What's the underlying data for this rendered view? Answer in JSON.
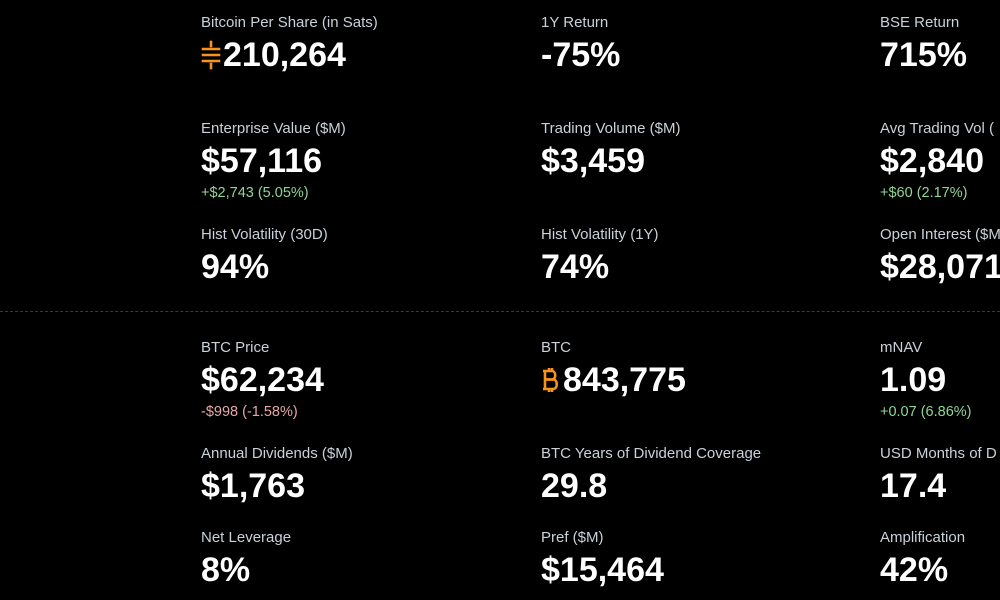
{
  "colors": {
    "accent": "#f7931a",
    "positive": "#8fd694",
    "negative": "#e6a8a8"
  },
  "top": {
    "bps": {
      "label": "Bitcoin Per Share (in Sats)",
      "value": "210,264",
      "icon": "sats-icon"
    },
    "return_1y": {
      "label": "1Y Return",
      "value": "-75%"
    },
    "bse_return": {
      "label": "BSE Return",
      "value": "715%"
    },
    "ev": {
      "label": "Enterprise Value ($M)",
      "value": "$57,116",
      "change": "+$2,743 (5.05%)"
    },
    "volume": {
      "label": "Trading Volume ($M)",
      "value": "$3,459"
    },
    "avg_volume": {
      "label": "Avg Trading Vol (",
      "value": "$2,840",
      "change": "+$60 (2.17%)"
    },
    "hv30": {
      "label": "Hist Volatility (30D)",
      "value": "94%"
    },
    "hv1y": {
      "label": "Hist Volatility (1Y)",
      "value": "74%"
    },
    "oi": {
      "label": "Open Interest ($M",
      "value": "$28,071"
    }
  },
  "bottom": {
    "btc_price": {
      "label": "BTC Price",
      "value": "$62,234",
      "change": "-$998 (-1.58%)"
    },
    "btc": {
      "label": "BTC",
      "value": "843,775",
      "icon": "bitcoin-icon"
    },
    "mnav": {
      "label": "mNAV",
      "value": "1.09",
      "change": "+0.07 (6.86%)"
    },
    "dividends": {
      "label": "Annual Dividends ($M)",
      "value": "$1,763"
    },
    "btc_years": {
      "label": "BTC Years of Dividend Coverage",
      "value": "29.8"
    },
    "usd_months": {
      "label": "USD Months of D",
      "value": "17.4"
    },
    "leverage": {
      "label": "Net Leverage",
      "value": "8%"
    },
    "pref": {
      "label": "Pref ($M)",
      "value": "$15,464"
    },
    "amplification": {
      "label": "Amplification",
      "value": "42%"
    }
  }
}
